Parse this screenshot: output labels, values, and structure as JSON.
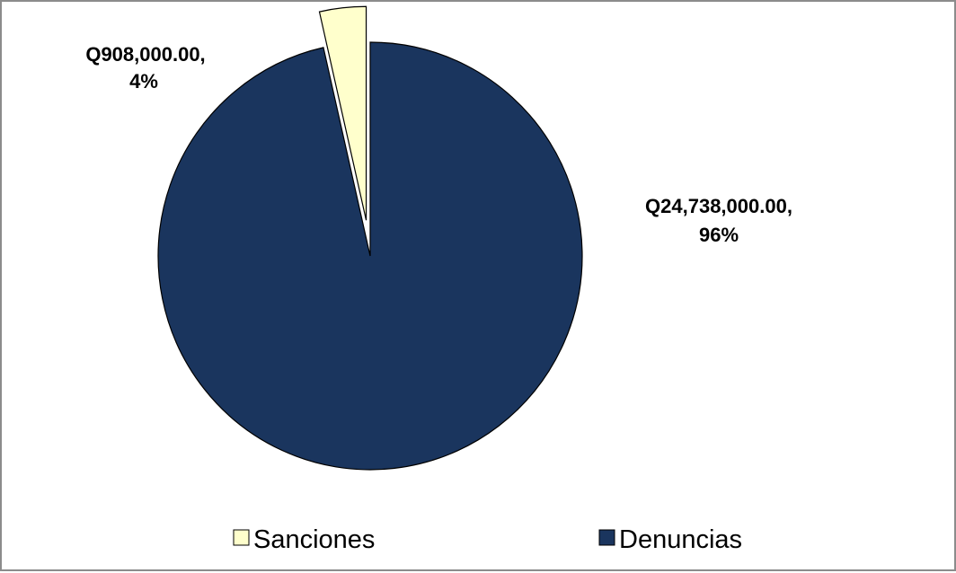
{
  "chart_data": {
    "type": "pie",
    "title": "",
    "categories": [
      "Sanciones",
      "Denuncias"
    ],
    "values": [
      908000,
      24738000
    ],
    "percent_labels": [
      "4%",
      "96%"
    ],
    "value_labels": [
      "Q908,000.00,",
      "Q24,738,000.00,"
    ],
    "colors": [
      "#ffffcc",
      "#1a355e"
    ],
    "exploded": [
      true,
      false
    ],
    "legend_position": "bottom",
    "legend": [
      "Sanciones",
      "Denuncias"
    ]
  }
}
